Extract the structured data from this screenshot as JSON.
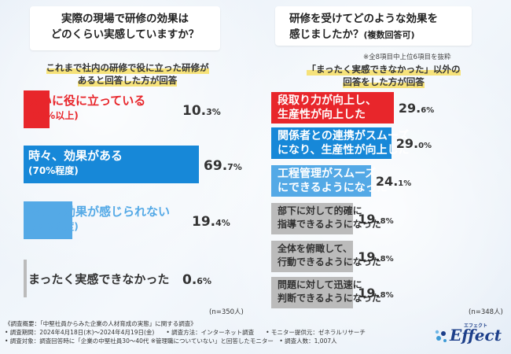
{
  "left": {
    "question": [
      "実際の現場で研修の効果は",
      "どのくらい実感していますか？"
    ],
    "subtitle": [
      "これまで社内の研修で役に立った研修が",
      "あると回答した方が回答"
    ],
    "n_label": "(n=350人)"
  },
  "right": {
    "question_line1": "研修を受けてどのような効果を",
    "question_line2_main": "感じましたか？",
    "question_line2_small": "(複数回答可)",
    "note": "※全8項目中上位6項目を抜粋",
    "subtitle": [
      "「まったく実感できなかった」以外の",
      "回答をした方が回答"
    ],
    "n_label": "(n=348人)"
  },
  "colors": {
    "red": "#e8262b",
    "blue": "#1788d8",
    "lightblue": "#54a9e6",
    "gray": "#bbbbbb"
  },
  "chart_data": [
    {
      "type": "bar",
      "title": "実際の現場で研修の効果はどのくらい実感していますか？",
      "categories": [
        "大いに役に立っている(90%以上)",
        "時々、効果がある(70%程度)",
        "あまり効果が感じられない(50%程度)",
        "まったく実感できなかった"
      ],
      "labels": [
        {
          "main": "大いに役に立っている",
          "sub": "(90%以上)"
        },
        {
          "main": "時々、効果がある",
          "sub": "(70%程度)"
        },
        {
          "main": "あまり効果が感じられない",
          "sub": "(50%程度)"
        },
        {
          "main": "まったく実感できなかった",
          "sub": ""
        }
      ],
      "values": [
        10.3,
        69.7,
        19.4,
        0.6
      ],
      "value_labels": [
        [
          "10.",
          "3%"
        ],
        [
          "69.",
          "7%"
        ],
        [
          "19.",
          "4%"
        ],
        [
          "0.",
          "6%"
        ]
      ],
      "colors": [
        "red",
        "blue",
        "lightblue",
        "gray"
      ],
      "ylim": [
        0,
        100
      ]
    },
    {
      "type": "bar",
      "title": "研修を受けてどのような効果を感じましたか？(複数回答可)",
      "categories": [
        "段取り力が向上し、生産性が向上した",
        "関係者との連携がスムーズになり、生産性が向上した",
        "工程管理がスムーズにできるようになった",
        "部下に対して的確に指導できるようになった",
        "全体を俯瞰して、行動できるようになった",
        "問題に対して迅速に判断できるようになった"
      ],
      "labels": [
        [
          "段取り力が向上し、",
          "生産性が向上した"
        ],
        [
          "関係者との連携がスムーズ",
          "になり、生産性が向上した"
        ],
        [
          "工程管理がスムーズ",
          "にできるようになった"
        ],
        [
          "部下に対して的確に",
          "指導できるようになった"
        ],
        [
          "全体を俯瞰して、",
          "行動できるようになった"
        ],
        [
          "問題に対して迅速に",
          "判断できるようになった"
        ]
      ],
      "values": [
        29.6,
        29.0,
        24.1,
        19.8,
        19.8,
        19.8
      ],
      "value_labels": [
        [
          "29.",
          "6%"
        ],
        [
          "29.",
          "0%"
        ],
        [
          "24.",
          "1%"
        ],
        [
          "19.",
          "8%"
        ],
        [
          "19.",
          "8%"
        ],
        [
          "19.",
          "8%"
        ]
      ],
      "colors": [
        "red",
        "blue",
        "lightblue",
        "gray",
        "gray",
        "gray"
      ],
      "ylim": [
        0,
        30
      ]
    }
  ],
  "footer": [
    "《調査概要：「中堅社員からみた企業の人材育成の実態」に関する調査》",
    "• 調査期間：2024年4月18日(木)～2024年4月19日(金)　　• 調査方法：インターネット調査　　• モニター提供元：ゼネラルリサーチ",
    "• 調査対象：調査回答時に「企業の中堅社員30～40代 ※管理職についていない」と回答したモニター　• 調査人数：1,007人"
  ],
  "logo": {
    "text": "Effect",
    "kana": "エフェクト"
  }
}
